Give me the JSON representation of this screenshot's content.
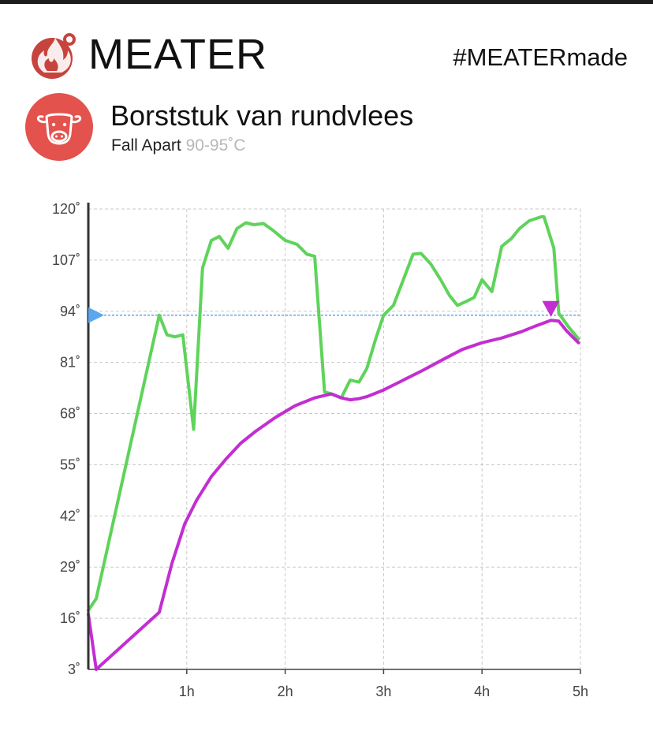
{
  "header": {
    "brand_name": "MEATER",
    "hashtag": "#MEATERmade"
  },
  "cook": {
    "title": "Borststuk van rundvlees",
    "doneness": "Fall Apart",
    "range": "90-95˚C",
    "icon": "cow-icon"
  },
  "colors": {
    "ambient": "#5fd35a",
    "internal": "#c22ed1",
    "target": "#5aa7f0",
    "accent": "#e3524d"
  },
  "chart_data": {
    "type": "line",
    "title": "",
    "xlabel": "",
    "ylabel": "",
    "xlim": [
      0,
      5
    ],
    "ylim": [
      3,
      120
    ],
    "x_ticks": [
      {
        "value": 1,
        "label": "1h"
      },
      {
        "value": 2,
        "label": "2h"
      },
      {
        "value": 3,
        "label": "3h"
      },
      {
        "value": 4,
        "label": "4h"
      },
      {
        "value": 5,
        "label": "5h"
      }
    ],
    "y_ticks": [
      {
        "value": 120,
        "label": "120˚"
      },
      {
        "value": 107,
        "label": "107˚"
      },
      {
        "value": 94,
        "label": "94˚"
      },
      {
        "value": 81,
        "label": "81˚"
      },
      {
        "value": 68,
        "label": "68˚"
      },
      {
        "value": 55,
        "label": "55˚"
      },
      {
        "value": 42,
        "label": "42˚"
      },
      {
        "value": 29,
        "label": "29˚"
      },
      {
        "value": 16,
        "label": "16˚"
      },
      {
        "value": 3,
        "label": "3˚"
      }
    ],
    "grid": true,
    "target_temp": 93,
    "internal_marker_x": 4.7,
    "series": [
      {
        "name": "",
        "color": "#5fd35a",
        "points": [
          [
            0.0,
            18
          ],
          [
            0.08,
            21
          ],
          [
            0.72,
            93
          ],
          [
            0.8,
            88
          ],
          [
            0.88,
            87.5
          ],
          [
            0.96,
            88
          ],
          [
            1.07,
            64
          ],
          [
            1.16,
            105
          ],
          [
            1.25,
            112
          ],
          [
            1.33,
            113
          ],
          [
            1.42,
            110
          ],
          [
            1.51,
            115
          ],
          [
            1.6,
            116.5
          ],
          [
            1.68,
            116
          ],
          [
            1.78,
            116.3
          ],
          [
            1.88,
            114.5
          ],
          [
            2.0,
            112
          ],
          [
            2.12,
            111
          ],
          [
            2.22,
            108.5
          ],
          [
            2.3,
            108
          ],
          [
            2.4,
            73.5
          ],
          [
            2.47,
            73
          ],
          [
            2.57,
            72
          ],
          [
            2.66,
            76.5
          ],
          [
            2.75,
            76
          ],
          [
            2.83,
            79.5
          ],
          [
            2.92,
            87
          ],
          [
            3.0,
            93
          ],
          [
            3.1,
            95.5
          ],
          [
            3.2,
            102
          ],
          [
            3.3,
            108.5
          ],
          [
            3.38,
            108.7
          ],
          [
            3.48,
            106
          ],
          [
            3.58,
            102
          ],
          [
            3.67,
            98
          ],
          [
            3.75,
            95.5
          ],
          [
            3.84,
            96.5
          ],
          [
            3.92,
            97.5
          ],
          [
            4.0,
            102
          ],
          [
            4.1,
            99
          ],
          [
            4.2,
            110.5
          ],
          [
            4.3,
            112.5
          ],
          [
            4.38,
            115
          ],
          [
            4.48,
            117
          ],
          [
            4.6,
            118
          ],
          [
            4.63,
            118
          ],
          [
            4.73,
            110
          ],
          [
            4.78,
            93.5
          ],
          [
            4.88,
            90
          ],
          [
            4.98,
            87
          ]
        ]
      },
      {
        "name": "",
        "color": "#c22ed1",
        "points": [
          [
            0.0,
            17
          ],
          [
            0.08,
            3
          ],
          [
            0.72,
            17.5
          ],
          [
            0.85,
            30
          ],
          [
            0.98,
            40
          ],
          [
            1.1,
            46
          ],
          [
            1.25,
            52
          ],
          [
            1.4,
            56.5
          ],
          [
            1.55,
            60.5
          ],
          [
            1.7,
            63.5
          ],
          [
            1.9,
            67
          ],
          [
            2.1,
            70
          ],
          [
            2.3,
            72
          ],
          [
            2.47,
            73
          ],
          [
            2.57,
            72
          ],
          [
            2.66,
            71.5
          ],
          [
            2.75,
            71.8
          ],
          [
            2.83,
            72.3
          ],
          [
            3.0,
            74
          ],
          [
            3.2,
            76.5
          ],
          [
            3.4,
            79
          ],
          [
            3.6,
            81.7
          ],
          [
            3.8,
            84.3
          ],
          [
            4.0,
            86
          ],
          [
            4.2,
            87.2
          ],
          [
            4.4,
            88.8
          ],
          [
            4.55,
            90.3
          ],
          [
            4.7,
            91.7
          ],
          [
            4.78,
            91.5
          ],
          [
            4.86,
            89
          ],
          [
            4.98,
            86
          ]
        ]
      }
    ]
  }
}
